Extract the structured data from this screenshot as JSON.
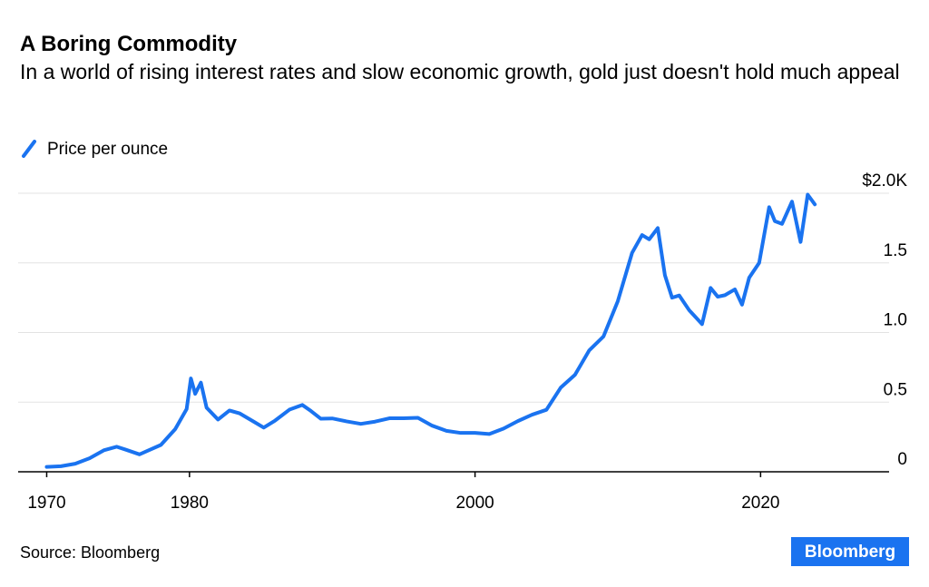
{
  "chart_data": {
    "type": "line",
    "title": "A Boring Commodity",
    "subtitle": "In a world of rising interest rates and slow economic growth, gold just doesn't hold much appeal",
    "source": "Source: Bloomberg",
    "brand": "Bloomberg",
    "x": [
      1970,
      1971,
      1972,
      1973,
      1974,
      1974.9,
      1975.5,
      1976.5,
      1977,
      1978,
      1979,
      1979.8,
      1980.1,
      1980.4,
      1980.8,
      1981.2,
      1982,
      1982.8,
      1983.5,
      1984.5,
      1985.2,
      1986,
      1987,
      1987.9,
      1988.5,
      1989.2,
      1990,
      1991,
      1992,
      1993,
      1994,
      1995,
      1996,
      1997,
      1998,
      1999,
      2000,
      2001,
      2002,
      2003,
      2004,
      2005,
      2006,
      2007,
      2008,
      2009,
      2010,
      2011,
      2011.7,
      2012.2,
      2012.8,
      2013.3,
      2013.8,
      2014.3,
      2015,
      2015.9,
      2016.5,
      2017,
      2017.5,
      2018.2,
      2018.7,
      2019.2,
      2019.9,
      2020.6,
      2021,
      2021.5,
      2022.2,
      2022.8,
      2023.3,
      2023.8
    ],
    "series": [
      {
        "name": "Price per ounce",
        "color": "#1a73f0",
        "values": [
          35,
          40,
          58,
          97,
          154,
          180,
          160,
          125,
          148,
          193,
          306,
          450,
          670,
          560,
          640,
          460,
          375,
          440,
          420,
          360,
          317,
          368,
          446,
          480,
          437,
          381,
          383,
          362,
          344,
          360,
          384,
          384,
          388,
          331,
          294,
          279,
          279,
          271,
          310,
          364,
          410,
          445,
          604,
          696,
          872,
          972,
          1225,
          1572,
          1700,
          1669,
          1750,
          1411,
          1250,
          1266,
          1160,
          1060,
          1320,
          1257,
          1268,
          1310,
          1200,
          1393,
          1500,
          1900,
          1800,
          1780,
          1940,
          1650,
          1990,
          1920
        ]
      }
    ],
    "xlim": [
      1968,
      2029
    ],
    "xticks": [
      1970,
      1980,
      2000,
      2020
    ],
    "ylim": [
      0,
      2000
    ],
    "yticks": [
      0,
      {
        "value": 500,
        "label": "0.5"
      },
      {
        "value": 1000,
        "label": "1.0"
      },
      {
        "value": 1500,
        "label": "1.5"
      },
      {
        "value": 2000,
        "label": "$2.0K"
      }
    ],
    "grid": true
  }
}
